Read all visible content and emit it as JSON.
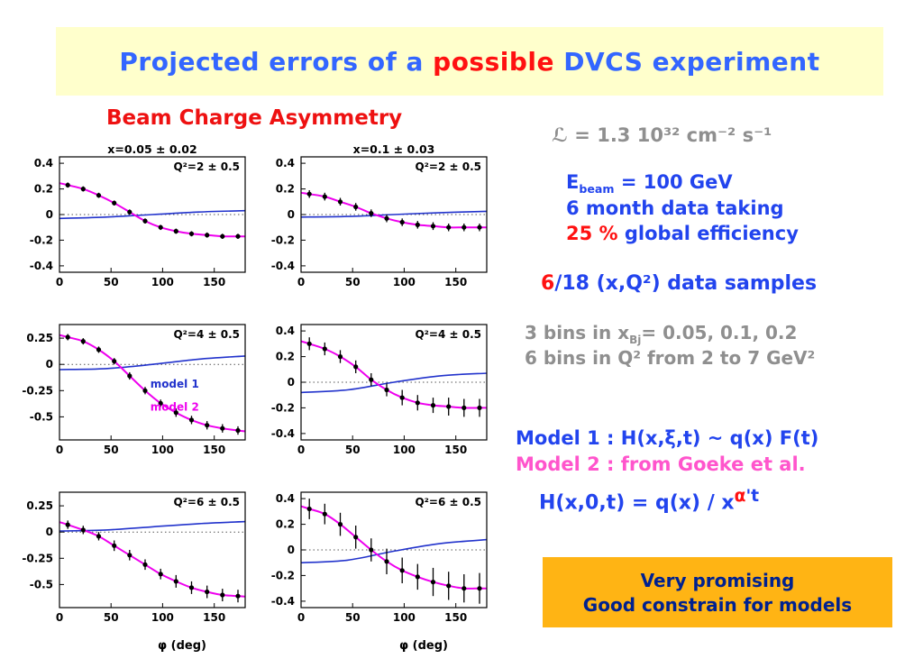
{
  "slide": {
    "title": {
      "part1": "Projected errors of a ",
      "highlight": "possible",
      "part2": " DVCS experiment"
    },
    "section_heading": "Beam Charge Asymmetry"
  },
  "info": {
    "luminosity": "ℒ = 1.3 10³² cm⁻² s⁻¹",
    "ebeam": {
      "main": "E",
      "sub": "beam",
      "rest": " = 100 GeV"
    },
    "data_taking": "6 month data taking",
    "efficiency": {
      "highlight": "25 %",
      "rest": " global efficiency"
    },
    "samples": {
      "highlight": "6",
      "rest": "/18 (x,Q²) data samples"
    },
    "bins_x": {
      "pre": "3 bins in x",
      "sub": "Bj",
      "post": "= 0.05, 0.1, 0.2"
    },
    "bins_q2": "6 bins in Q² from 2 to 7 GeV²",
    "model1": "Model 1 : H(x,ξ,t) ~ q(x) F(t)",
    "model2": "Model 2 : from Goeke et al.",
    "formula": {
      "main": "H(x,0,t) = q(x) / x",
      "sup_alpha": "α",
      "sup_rest": "'t"
    },
    "conclusion": {
      "line1": "Very promising",
      "line2": "Good constrain for models"
    }
  },
  "colors": {
    "title_blue": "#3366ff",
    "accent_red": "#ff1111",
    "text_blue": "#2244ee",
    "text_gray": "#8f8f8f",
    "pink": "#ff55cc",
    "model1_blue": "#2233cc",
    "model2_magenta": "#ee00ee",
    "banner_bg": "#ffffcc",
    "box_bg": "#ffb414",
    "box_text": "#00218f"
  },
  "chart_data": [
    {
      "type": "scatter",
      "top_title": "x=0.05 ± 0.02",
      "label": "Q²=2 ± 0.5",
      "xlabel": "",
      "xlim": [
        0,
        180
      ],
      "ylim": [
        -0.45,
        0.45
      ],
      "xticks": [
        0,
        50,
        100,
        150
      ],
      "yticks": [
        0.4,
        0.2,
        0,
        -0.2,
        -0.4
      ],
      "phi": [
        8,
        23,
        38,
        53,
        68,
        83,
        98,
        113,
        128,
        143,
        158,
        173
      ],
      "y": [
        0.23,
        0.2,
        0.15,
        0.09,
        0.02,
        -0.05,
        -0.1,
        -0.13,
        -0.15,
        -0.16,
        -0.17,
        -0.17
      ],
      "yerr": [
        0.02,
        0.02,
        0.02,
        0.02,
        0.02,
        0.02,
        0.02,
        0.02,
        0.02,
        0.02,
        0.02,
        0.02
      ],
      "model1_curve": [
        [
          0,
          -0.03
        ],
        [
          45,
          -0.02
        ],
        [
          90,
          0
        ],
        [
          135,
          0.02
        ],
        [
          180,
          0.03
        ]
      ]
    },
    {
      "type": "scatter",
      "top_title": "x=0.1 ± 0.03",
      "label": "Q²=2 ± 0.5",
      "xlabel": "",
      "xlim": [
        0,
        180
      ],
      "ylim": [
        -0.45,
        0.45
      ],
      "xticks": [
        0,
        50,
        100,
        150
      ],
      "yticks": [
        0.4,
        0.2,
        0,
        -0.2,
        -0.4
      ],
      "phi": [
        8,
        23,
        38,
        53,
        68,
        83,
        98,
        113,
        128,
        143,
        158,
        173
      ],
      "y": [
        0.16,
        0.14,
        0.1,
        0.06,
        0.01,
        -0.03,
        -0.06,
        -0.08,
        -0.09,
        -0.1,
        -0.1,
        -0.1
      ],
      "yerr": [
        0.03,
        0.03,
        0.03,
        0.03,
        0.03,
        0.03,
        0.03,
        0.03,
        0.03,
        0.03,
        0.03,
        0.03
      ],
      "model1_curve": [
        [
          0,
          -0.02
        ],
        [
          45,
          -0.015
        ],
        [
          90,
          0
        ],
        [
          135,
          0.015
        ],
        [
          180,
          0.025
        ]
      ]
    },
    {
      "type": "scatter",
      "top_title": "",
      "label": "Q²=4 ± 0.5",
      "xlabel": "",
      "xlim": [
        0,
        180
      ],
      "ylim": [
        -0.72,
        0.38
      ],
      "xticks": [
        0,
        50,
        100,
        150
      ],
      "yticks": [
        0.25,
        0,
        -0.25,
        -0.5
      ],
      "phi": [
        8,
        23,
        38,
        53,
        68,
        83,
        98,
        113,
        128,
        143,
        158,
        173
      ],
      "y": [
        0.26,
        0.22,
        0.14,
        0.03,
        -0.11,
        -0.25,
        -0.37,
        -0.46,
        -0.53,
        -0.58,
        -0.61,
        -0.63
      ],
      "yerr": [
        0.03,
        0.03,
        0.03,
        0.03,
        0.035,
        0.035,
        0.035,
        0.04,
        0.04,
        0.04,
        0.04,
        0.04
      ],
      "model1_curve": [
        [
          0,
          -0.05
        ],
        [
          45,
          -0.04
        ],
        [
          90,
          0
        ],
        [
          135,
          0.05
        ],
        [
          180,
          0.08
        ]
      ],
      "annotations": [
        {
          "text": "model 1",
          "color": "#2233cc",
          "phi": 88,
          "y": -0.22
        },
        {
          "text": "model 2",
          "color": "#ee00ee",
          "phi": 88,
          "y": -0.44
        }
      ]
    },
    {
      "type": "scatter",
      "top_title": "",
      "label": "Q²=4 ± 0.5",
      "xlabel": "",
      "xlim": [
        0,
        180
      ],
      "ylim": [
        -0.45,
        0.45
      ],
      "xticks": [
        0,
        50,
        100,
        150
      ],
      "yticks": [
        0.4,
        0.2,
        0,
        -0.2,
        -0.4
      ],
      "phi": [
        8,
        23,
        38,
        53,
        68,
        83,
        98,
        113,
        128,
        143,
        158,
        173
      ],
      "y": [
        0.3,
        0.26,
        0.2,
        0.12,
        0.02,
        -0.06,
        -0.12,
        -0.16,
        -0.18,
        -0.19,
        -0.2,
        -0.2
      ],
      "yerr": [
        0.05,
        0.05,
        0.05,
        0.05,
        0.05,
        0.05,
        0.06,
        0.06,
        0.06,
        0.07,
        0.07,
        0.07
      ],
      "model1_curve": [
        [
          0,
          -0.08
        ],
        [
          45,
          -0.06
        ],
        [
          90,
          0
        ],
        [
          135,
          0.05
        ],
        [
          180,
          0.07
        ]
      ]
    },
    {
      "type": "scatter",
      "top_title": "",
      "label": "Q²=6 ± 0.5",
      "xlabel": "φ (deg)",
      "xlim": [
        0,
        180
      ],
      "ylim": [
        -0.72,
        0.38
      ],
      "xticks": [
        0,
        50,
        100,
        150
      ],
      "yticks": [
        0.25,
        0,
        -0.25,
        -0.5
      ],
      "phi": [
        8,
        23,
        38,
        53,
        68,
        83,
        98,
        113,
        128,
        143,
        158,
        173
      ],
      "y": [
        0.07,
        0.02,
        -0.04,
        -0.13,
        -0.22,
        -0.31,
        -0.4,
        -0.47,
        -0.53,
        -0.57,
        -0.6,
        -0.61
      ],
      "yerr": [
        0.04,
        0.04,
        0.04,
        0.05,
        0.05,
        0.05,
        0.05,
        0.06,
        0.06,
        0.06,
        0.06,
        0.06
      ],
      "model1_curve": [
        [
          0,
          0.01
        ],
        [
          45,
          0.02
        ],
        [
          90,
          0.05
        ],
        [
          135,
          0.08
        ],
        [
          180,
          0.1
        ]
      ]
    },
    {
      "type": "scatter",
      "top_title": "",
      "label": "Q²=6 ± 0.5",
      "xlabel": "φ (deg)",
      "xlim": [
        0,
        180
      ],
      "ylim": [
        -0.45,
        0.45
      ],
      "xticks": [
        0,
        50,
        100,
        150
      ],
      "yticks": [
        0.4,
        0.2,
        0,
        -0.2,
        -0.4
      ],
      "phi": [
        8,
        23,
        38,
        53,
        68,
        83,
        98,
        113,
        128,
        143,
        158,
        173
      ],
      "y": [
        0.32,
        0.28,
        0.2,
        0.1,
        0,
        -0.09,
        -0.16,
        -0.21,
        -0.25,
        -0.28,
        -0.3,
        -0.3
      ],
      "yerr": [
        0.08,
        0.08,
        0.09,
        0.09,
        0.09,
        0.1,
        0.1,
        0.1,
        0.11,
        0.11,
        0.11,
        0.12
      ],
      "model1_curve": [
        [
          0,
          -0.1
        ],
        [
          45,
          -0.08
        ],
        [
          90,
          -0.01
        ],
        [
          135,
          0.05
        ],
        [
          180,
          0.08
        ]
      ]
    }
  ]
}
